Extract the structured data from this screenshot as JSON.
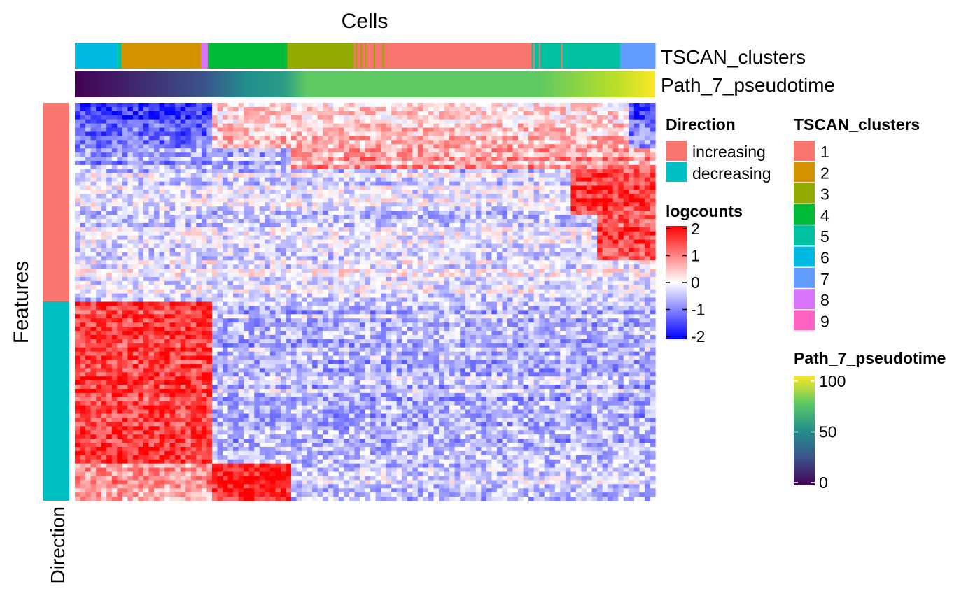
{
  "chart_data": {
    "type": "heatmap",
    "column_title": "Cells",
    "row_title": "Features",
    "row_annotation_label": "Direction",
    "top_annotations": [
      {
        "name": "TSCAN_clusters",
        "segments": [
          {
            "cluster": "6",
            "start": 0.0,
            "end": 0.073
          },
          {
            "cluster": "5",
            "start": 0.073,
            "end": 0.08
          },
          {
            "cluster": "2",
            "start": 0.08,
            "end": 0.217
          },
          {
            "cluster": "8",
            "start": 0.217,
            "end": 0.229
          },
          {
            "cluster": "4",
            "start": 0.229,
            "end": 0.366
          },
          {
            "cluster": "3",
            "start": 0.366,
            "end": 0.481
          },
          {
            "cluster": "1",
            "start": 0.481,
            "end": 0.787
          },
          {
            "cluster": "5",
            "start": 0.787,
            "end": 0.94
          },
          {
            "cluster": "7",
            "start": 0.94,
            "end": 1.0
          }
        ]
      },
      {
        "name": "Path_7_pseudotime",
        "range": [
          0,
          100
        ]
      }
    ],
    "row_groups": [
      {
        "direction": "increasing",
        "fraction": 0.5
      },
      {
        "direction": "decreasing",
        "fraction": 0.5
      }
    ],
    "legends": {
      "direction": {
        "title": "Direction",
        "entries": [
          {
            "label": "increasing",
            "color": "#F8766D"
          },
          {
            "label": "decreasing",
            "color": "#00BFC4"
          }
        ]
      },
      "logcounts": {
        "title": "logcounts",
        "ticks": [
          "2",
          "1",
          "0",
          "-1",
          "-2"
        ],
        "range": [
          -2,
          2
        ],
        "colors": [
          "#0000FF",
          "#FFFFFF",
          "#FF0000"
        ]
      },
      "clusters": {
        "title": "TSCAN_clusters",
        "entries": [
          {
            "label": "1",
            "color": "#F8766D"
          },
          {
            "label": "2",
            "color": "#D39200"
          },
          {
            "label": "3",
            "color": "#93AA00"
          },
          {
            "label": "4",
            "color": "#00BA38"
          },
          {
            "label": "5",
            "color": "#00C19F"
          },
          {
            "label": "6",
            "color": "#00B9E3"
          },
          {
            "label": "7",
            "color": "#619CFF"
          },
          {
            "label": "8",
            "color": "#DB72FB"
          },
          {
            "label": "9",
            "color": "#FF61C3"
          }
        ]
      },
      "pseudotime": {
        "title": "Path_7_pseudotime",
        "ticks": [
          "100",
          "50",
          "0"
        ],
        "range": [
          0,
          100
        ],
        "colors": [
          "#440154",
          "#21908C",
          "#5EC962",
          "#FDE725"
        ]
      }
    }
  }
}
